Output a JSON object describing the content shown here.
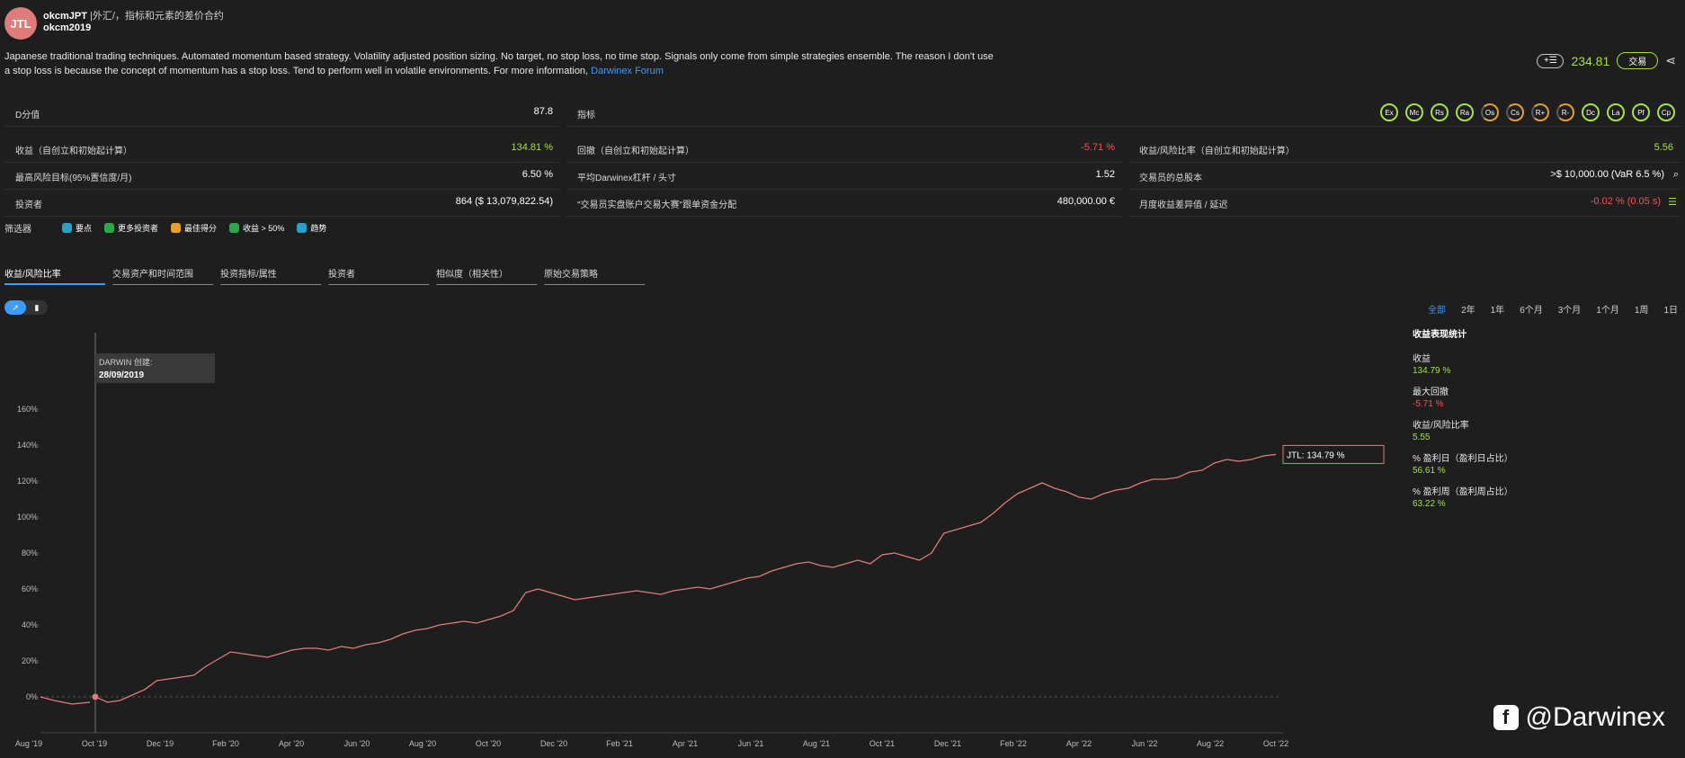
{
  "header": {
    "avatar_text": "JTL",
    "name": "okcmJPT",
    "category": "|外汇/，指标和元素的差价合约",
    "username": "okcm2019",
    "description": "Japanese traditional trading techniques. Automated momentum based strategy. Volatility adjusted position sizing. No target, no stop loss, no time stop. Signals only come from simple strategies ensemble. The reason I don't use a stop loss is because the concept of momentum has a stop loss. Tend to perform well in volatile environments. For more information, ",
    "link": "Darwinex Forum",
    "plus_label": "+☰",
    "price": "234.81",
    "trade_label": "交易",
    "share_icon": "share-icon"
  },
  "metrics": {
    "d_score_label": "D分值",
    "d_score": "87.8",
    "indicators_label": "指标",
    "badges": [
      "Ex",
      "Mc",
      "Rs",
      "Ra",
      "Os",
      "Cs",
      "R+",
      "R-",
      "Dc",
      "La",
      "Pf",
      "Cp"
    ],
    "return_label": "收益（自创立和初始起计算）",
    "return": "134.81 %",
    "drawdown_label": "回撤（自创立和初始起计算）",
    "drawdown": "-5.71 %",
    "ratio_label": "收益/风险比率（自创立和初始起计算）",
    "ratio": "5.56",
    "risk_label": "最高风险目标(95%置信度/月)",
    "risk": "6.50 %",
    "leverage_label": "平均Darwinex杠杆 / 头寸",
    "leverage": "1.52",
    "capital_label": "交易员的总股本",
    "capital": ">$ 10,000.00 (VaR 6.5 %)",
    "investors_label": "投资者",
    "investors": "864 ($ 13,079,822.54)",
    "allocation_label": "\"交易员实盘账户交易大赛\"跟单资金分配",
    "allocation": "480,000.00 €",
    "monthly_label": "月度收益差异值 / 延迟",
    "monthly": "-0.02 % (0.05 s)"
  },
  "filters": {
    "label": "筛选器",
    "items": [
      "要点",
      "更多投资者",
      "最佳得分",
      "收益 > 50%",
      "趋势"
    ],
    "colors": [
      "#28a0c8",
      "#2aa84a",
      "#e8a02c",
      "#2aa84a",
      "#28a0c8"
    ]
  },
  "tabs": [
    "收益/风险比率",
    "交易资产和时间范围",
    "投资指标/属性",
    "投资者",
    "相似度（相关性）",
    "原始交易策略"
  ],
  "ranges": [
    "全部",
    "2年",
    "1年",
    "6个月",
    "3个月",
    "1个月",
    "1周",
    "1日"
  ],
  "stats": {
    "title": "收益表现统计",
    "items": [
      {
        "label": "收益",
        "value": "134.79 %",
        "color": "green"
      },
      {
        "label": "最大回撤",
        "value": "-5.71 %",
        "color": "red"
      },
      {
        "label": "收益/风险比率",
        "value": "5.55",
        "color": "green"
      },
      {
        "label": "% 盈利日（盈利日占比）",
        "value": "56.61 %",
        "color": "green"
      },
      {
        "label": "% 盈利周（盈利周占比）",
        "value": "63.22 %",
        "color": "green"
      }
    ]
  },
  "watermark": "@Darwinex",
  "chart_data": {
    "type": "line",
    "series_name": "JTL",
    "last_label": "JTL: 134.79 %",
    "annotation": {
      "title": "DARWIN 创建:",
      "date": "28/09/2019"
    },
    "ylabel": "",
    "ylim": [
      -20,
      170
    ],
    "yticks": [
      "0%",
      "20%",
      "40%",
      "60%",
      "80%",
      "100%",
      "120%",
      "140%",
      "160%"
    ],
    "xticks": [
      "Aug '19",
      "Oct '19",
      "Dec '19",
      "Feb '20",
      "Apr '20",
      "Jun '20",
      "Aug '20",
      "Oct '20",
      "Dec '20",
      "Feb '21",
      "Apr '21",
      "Jun '21",
      "Aug '21",
      "Oct '21",
      "Dec '21",
      "Feb '22",
      "Apr '22",
      "Jun '22",
      "Aug '22",
      "Oct '22"
    ],
    "points": [
      [
        0,
        0
      ],
      [
        0.5,
        -3
      ],
      [
        1,
        -2
      ],
      [
        1.5,
        1
      ],
      [
        2,
        4
      ],
      [
        2.5,
        9
      ],
      [
        3,
        10
      ],
      [
        3.5,
        11
      ],
      [
        4,
        12
      ],
      [
        4.5,
        17
      ],
      [
        5,
        21
      ],
      [
        5.5,
        25
      ],
      [
        6,
        24
      ],
      [
        6.5,
        23
      ],
      [
        7,
        22
      ],
      [
        7.5,
        24
      ],
      [
        8,
        26
      ],
      [
        8.5,
        27
      ],
      [
        9,
        27
      ],
      [
        9.5,
        26
      ],
      [
        10,
        28
      ],
      [
        10.5,
        27
      ],
      [
        11,
        29
      ],
      [
        11.5,
        30
      ],
      [
        12,
        32
      ],
      [
        12.5,
        35
      ],
      [
        13,
        37
      ],
      [
        13.5,
        38
      ],
      [
        14,
        40
      ],
      [
        14.5,
        41
      ],
      [
        15,
        42
      ],
      [
        15.5,
        41
      ],
      [
        16,
        43
      ],
      [
        16.5,
        45
      ],
      [
        17,
        48
      ],
      [
        17.5,
        58
      ],
      [
        18,
        60
      ],
      [
        18.5,
        58
      ],
      [
        19,
        56
      ],
      [
        19.5,
        54
      ],
      [
        20,
        55
      ],
      [
        20.5,
        56
      ],
      [
        21,
        57
      ],
      [
        21.5,
        58
      ],
      [
        22,
        59
      ],
      [
        22.5,
        58
      ],
      [
        23,
        57
      ],
      [
        23.5,
        59
      ],
      [
        24,
        60
      ],
      [
        24.5,
        61
      ],
      [
        25,
        60
      ],
      [
        25.5,
        62
      ],
      [
        26,
        64
      ],
      [
        26.5,
        66
      ],
      [
        27,
        67
      ],
      [
        27.5,
        70
      ],
      [
        28,
        72
      ],
      [
        28.5,
        74
      ],
      [
        29,
        75
      ],
      [
        29.5,
        73
      ],
      [
        30,
        72
      ],
      [
        30.5,
        74
      ],
      [
        31,
        76
      ],
      [
        31.5,
        74
      ],
      [
        32,
        79
      ],
      [
        32.5,
        80
      ],
      [
        33,
        78
      ],
      [
        33.5,
        76
      ],
      [
        34,
        80
      ],
      [
        34.5,
        91
      ],
      [
        35,
        93
      ],
      [
        35.5,
        95
      ],
      [
        36,
        97
      ],
      [
        36.5,
        102
      ],
      [
        37,
        108
      ],
      [
        37.5,
        113
      ],
      [
        38,
        116
      ],
      [
        38.5,
        119
      ],
      [
        39,
        116
      ],
      [
        39.5,
        114
      ],
      [
        40,
        111
      ],
      [
        40.5,
        110
      ],
      [
        41,
        113
      ],
      [
        41.5,
        115
      ],
      [
        42,
        116
      ],
      [
        42.5,
        119
      ],
      [
        43,
        121
      ],
      [
        43.5,
        121
      ],
      [
        44,
        122
      ],
      [
        44.5,
        125
      ],
      [
        45,
        126
      ],
      [
        45.5,
        130
      ],
      [
        46,
        132
      ],
      [
        46.5,
        131
      ],
      [
        47,
        132
      ],
      [
        47.5,
        134
      ],
      [
        48,
        134.79
      ]
    ]
  }
}
